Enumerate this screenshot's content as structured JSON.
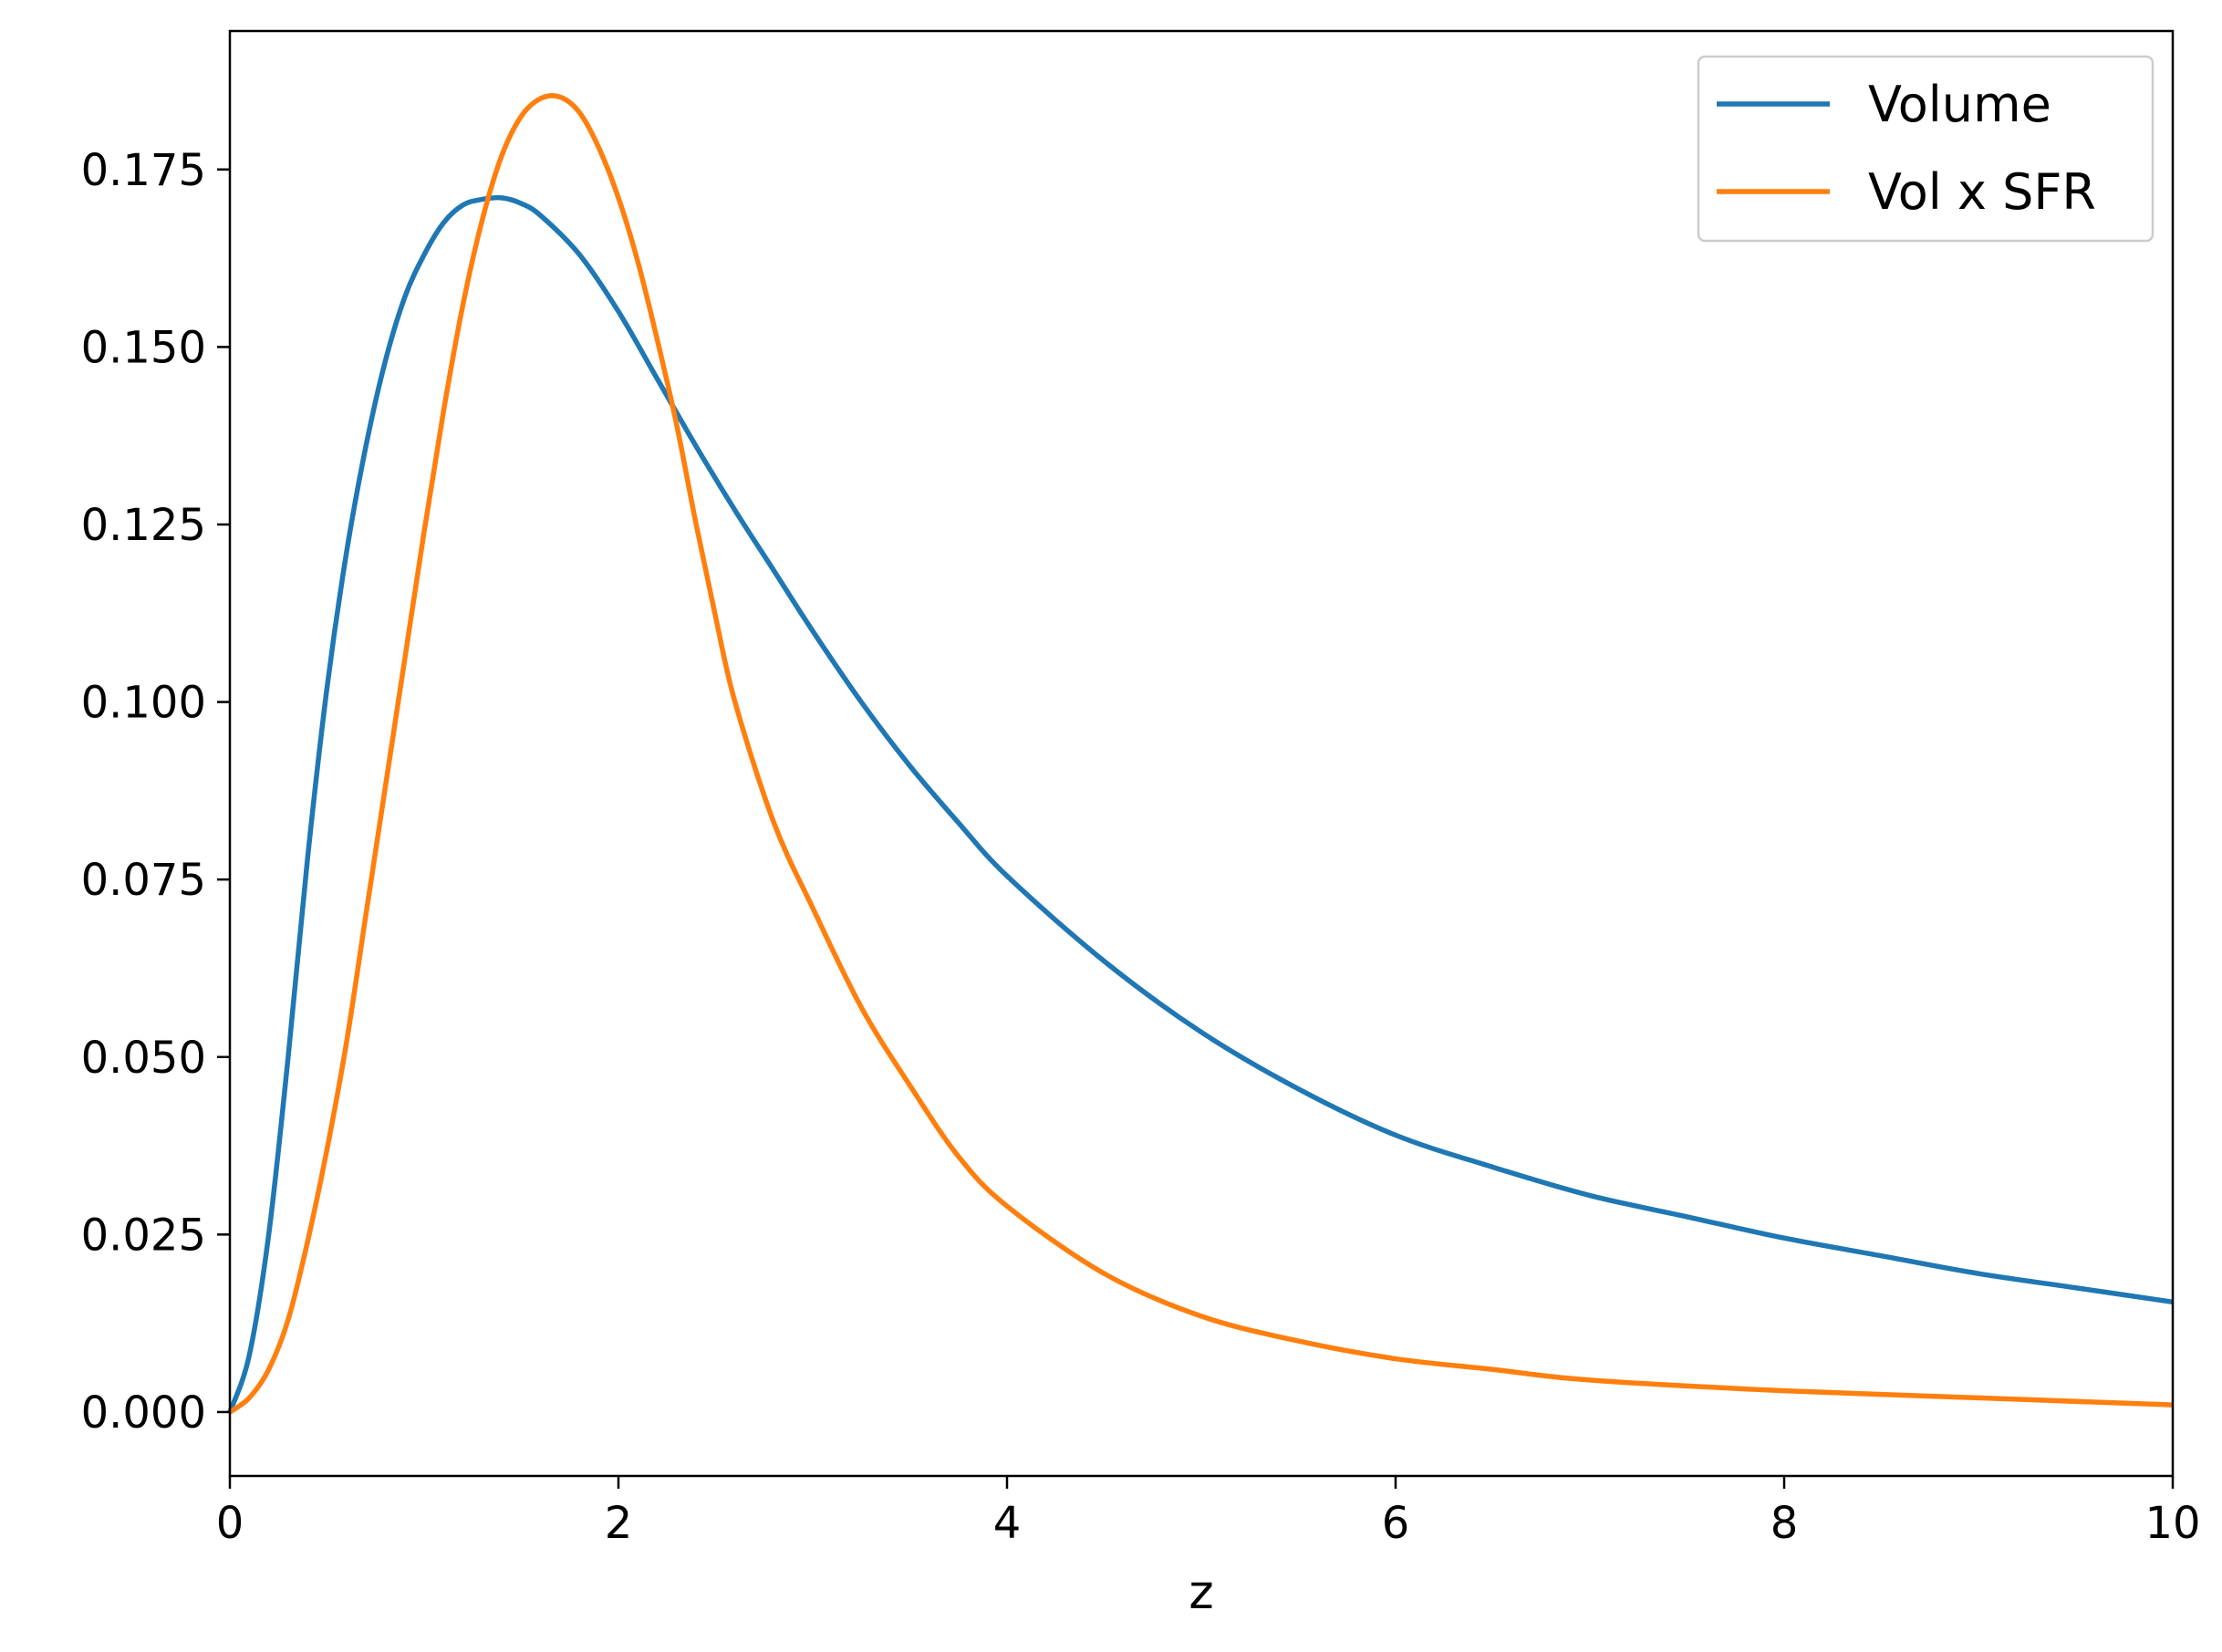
{
  "chart_data": {
    "type": "line",
    "title": "",
    "xlabel": "z",
    "ylabel": "",
    "xlim": [
      0,
      10
    ],
    "ylim": [
      -0.009,
      0.1945
    ],
    "grid": false,
    "legend_position": "top-right",
    "x_ticks": [
      0,
      2,
      4,
      6,
      8,
      10
    ],
    "x_tick_labels": [
      "0",
      "2",
      "4",
      "6",
      "8",
      "10"
    ],
    "y_ticks": [
      0.0,
      0.025,
      0.05,
      0.075,
      0.1,
      0.125,
      0.15,
      0.175
    ],
    "y_tick_labels": [
      "0.000",
      "0.025",
      "0.050",
      "0.075",
      "0.100",
      "0.125",
      "0.150",
      "0.175"
    ],
    "series": [
      {
        "name": "Volume",
        "color": "#1f77b4",
        "x": [
          0,
          0.1,
          0.2,
          0.3,
          0.4,
          0.5,
          0.6,
          0.7,
          0.8,
          0.9,
          1.0,
          1.1,
          1.2,
          1.3,
          1.4,
          1.5,
          1.6,
          1.8,
          2.0,
          2.2,
          2.4,
          2.6,
          2.8,
          3.0,
          3.25,
          3.5,
          3.75,
          4.0,
          4.5,
          5.0,
          5.5,
          6.0,
          6.5,
          7.0,
          7.5,
          8.0,
          8.5,
          9.0,
          9.5,
          10.0
        ],
        "y": [
          0.0,
          0.008,
          0.025,
          0.05,
          0.078,
          0.102,
          0.121,
          0.136,
          0.148,
          0.157,
          0.163,
          0.1675,
          0.17,
          0.1708,
          0.171,
          0.1702,
          0.1685,
          0.163,
          0.155,
          0.1455,
          0.136,
          0.127,
          0.1185,
          0.11,
          0.1,
          0.091,
          0.083,
          0.0755,
          0.0635,
          0.0535,
          0.0455,
          0.039,
          0.0345,
          0.0305,
          0.0275,
          0.0245,
          0.022,
          0.0195,
          0.0175,
          0.0155
        ]
      },
      {
        "name": "Vol x SFR",
        "color": "#ff7f0e",
        "x": [
          0,
          0.1,
          0.2,
          0.3,
          0.4,
          0.5,
          0.6,
          0.7,
          0.8,
          0.9,
          1.0,
          1.1,
          1.2,
          1.3,
          1.4,
          1.5,
          1.6,
          1.7,
          1.8,
          1.9,
          2.0,
          2.1,
          2.2,
          2.3,
          2.4,
          2.5,
          2.6,
          2.8,
          3.0,
          3.25,
          3.5,
          3.75,
          4.0,
          4.5,
          5.0,
          5.5,
          6.0,
          6.5,
          7.0,
          8.0,
          9.0,
          10.0
        ],
        "y": [
          0.0,
          0.002,
          0.006,
          0.013,
          0.024,
          0.037,
          0.052,
          0.07,
          0.088,
          0.106,
          0.124,
          0.141,
          0.156,
          0.168,
          0.177,
          0.1825,
          0.185,
          0.1852,
          0.183,
          0.178,
          0.171,
          0.162,
          0.151,
          0.139,
          0.125,
          0.112,
          0.1,
          0.083,
          0.071,
          0.057,
          0.046,
          0.036,
          0.029,
          0.0195,
          0.0135,
          0.01,
          0.0075,
          0.006,
          0.0045,
          0.003,
          0.002,
          0.001
        ]
      }
    ]
  }
}
